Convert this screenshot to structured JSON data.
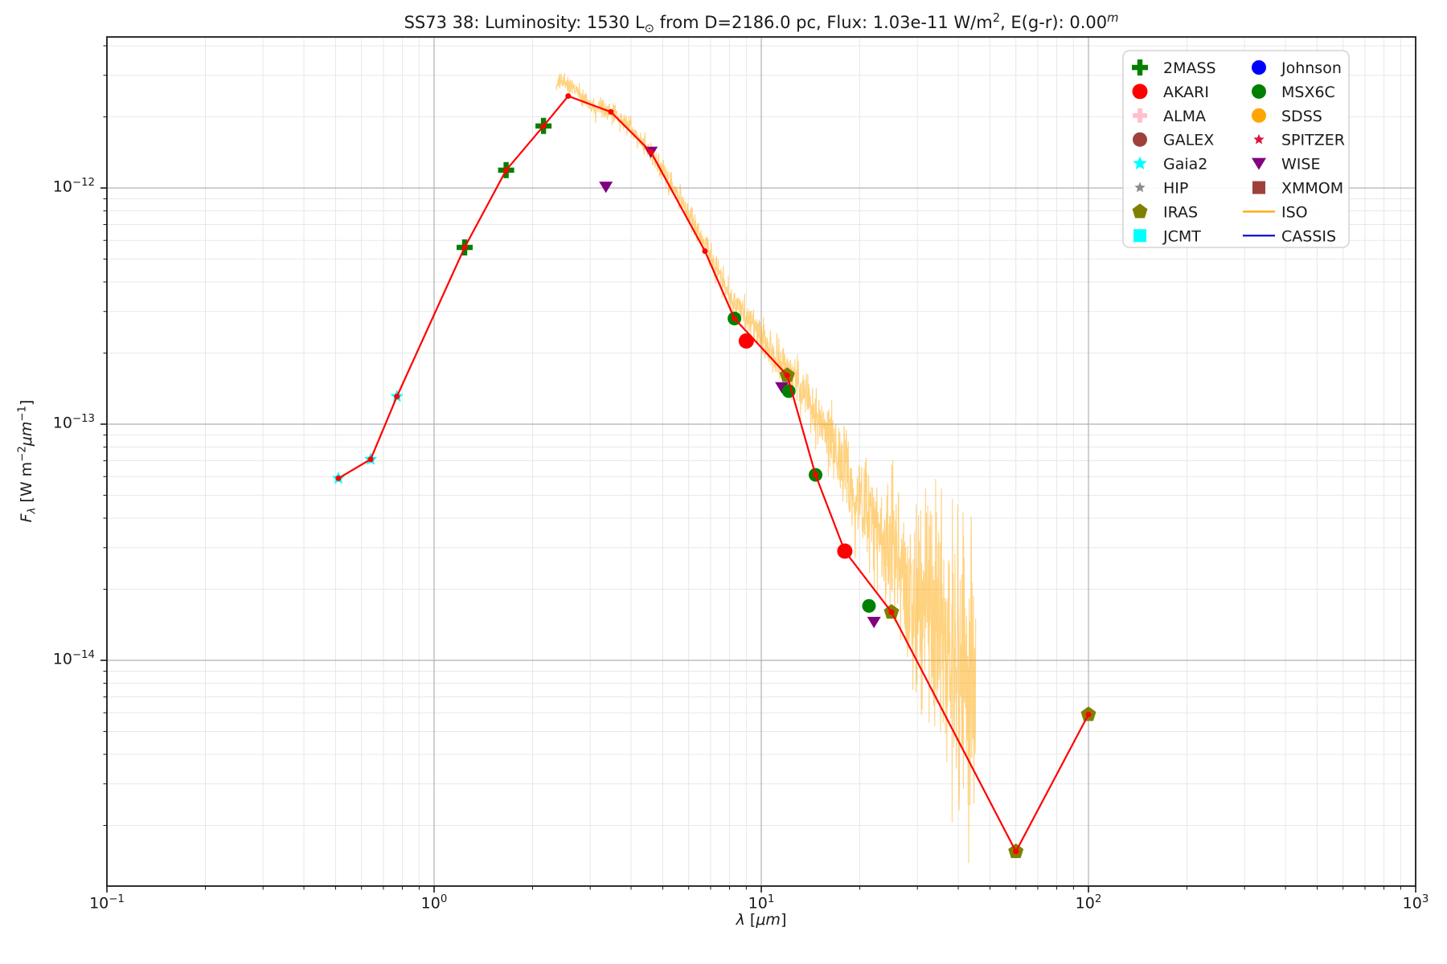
{
  "title": {
    "plain": "SS73 38:  Luminosity: 1530 L⊙ from D=2186.0 pc, Flux: 1.03e-11 W/m2, E(g-r): 0.00m",
    "segments": [
      {
        "t": "SS73 38:  Luminosity: 1530 L",
        "s": ""
      },
      {
        "t": "⊙",
        "s": "sub"
      },
      {
        "t": " from D=2186.0 pc, Flux: 1.03e-11 W/m",
        "s": ""
      },
      {
        "t": "2",
        "s": "sup"
      },
      {
        "t": ", E(g-r): 0.00",
        "s": ""
      },
      {
        "t": "m",
        "s": "sup-i"
      }
    ]
  },
  "axes": {
    "xlabel_segments": [
      {
        "t": "λ",
        "s": "i"
      },
      {
        "t": " [",
        "s": ""
      },
      {
        "t": "μm",
        "s": "i"
      },
      {
        "t": "]",
        "s": ""
      }
    ],
    "ylabel_segments": [
      {
        "t": "F",
        "s": "i"
      },
      {
        "t": "λ",
        "s": "sub-i"
      },
      {
        "t": " [W m",
        "s": ""
      },
      {
        "t": "−2",
        "s": "sup"
      },
      {
        "t": "μm",
        "s": "i"
      },
      {
        "t": "−1",
        "s": "sup"
      },
      {
        "t": "]",
        "s": ""
      }
    ],
    "x_ticks": [
      {
        "base": "10",
        "exp": "−1",
        "value": 0.1
      },
      {
        "base": "10",
        "exp": "0",
        "value": 1
      },
      {
        "base": "10",
        "exp": "1",
        "value": 10
      },
      {
        "base": "10",
        "exp": "2",
        "value": 100
      },
      {
        "base": "10",
        "exp": "3",
        "value": 1000
      }
    ],
    "y_ticks": [
      {
        "base": "10",
        "exp": "−12",
        "value": 1e-12
      },
      {
        "base": "10",
        "exp": "−13",
        "value": 1e-13
      },
      {
        "base": "10",
        "exp": "−14",
        "value": 1e-14
      }
    ],
    "grid_major_color": "#b0b0b0",
    "grid_minor_color": "#e8e8e8",
    "spine_color": "#1a1a1a"
  },
  "legend": {
    "columns": [
      [
        {
          "label": "2MASS",
          "marker": "plus",
          "color": "#008000",
          "size": 10
        },
        {
          "label": "AKARI",
          "marker": "circle",
          "color": "#ff0000",
          "size": 9.5
        },
        {
          "label": "ALMA",
          "marker": "plus",
          "color": "#ffc0cb",
          "size": 9
        },
        {
          "label": "GALEX",
          "marker": "circle",
          "color": "#a0403a",
          "size": 9
        },
        {
          "label": "Gaia2",
          "marker": "star",
          "color": "#00ffff",
          "size": 9
        },
        {
          "label": "HIP",
          "marker": "star",
          "color": "#8c8c8c",
          "size": 7
        },
        {
          "label": "IRAS",
          "marker": "pentagon",
          "color": "#808000",
          "size": 10
        },
        {
          "label": "JCMT",
          "marker": "square",
          "color": "#00ffff",
          "size": 8
        }
      ],
      [
        {
          "label": "Johnson",
          "marker": "circle",
          "color": "#0000ff",
          "size": 9
        },
        {
          "label": "MSX6C",
          "marker": "circle",
          "color": "#008000",
          "size": 9
        },
        {
          "label": "SDSS",
          "marker": "circle",
          "color": "#ffa500",
          "size": 9
        },
        {
          "label": "SPITZER",
          "marker": "star",
          "color": "#dc143c",
          "size": 7
        },
        {
          "label": "WISE",
          "marker": "triangle-down",
          "color": "#800080",
          "size": 9
        },
        {
          "label": "XMMOM",
          "marker": "square",
          "color": "#a0403a",
          "size": 8
        },
        {
          "label": "ISO",
          "marker": "hline",
          "color": "#ffa500",
          "size": 20
        },
        {
          "label": "CASSIS",
          "marker": "hline",
          "color": "#0000cd",
          "size": 20
        }
      ]
    ]
  },
  "chart_data": {
    "type": "scatter",
    "x_scale": "log",
    "y_scale": "log",
    "xlim": [
      0.1,
      1000
    ],
    "ylim": [
      1.1e-15,
      4.36e-12
    ],
    "xlabel": "lambda [um]",
    "ylabel": "F_lambda [W m^-2 um^-1]",
    "grid": "both",
    "legend_position": "upper right",
    "title": "SS73 38:  Luminosity: 1530 Lsun from D=2186.0 pc, Flux: 1.03e-11 W/m2, E(g-r): 0.00m",
    "series": [
      {
        "name": "Gaia2",
        "marker": "star",
        "color": "#00ffff",
        "msize": 8.5,
        "points": [
          [
            0.51,
            5.9e-14
          ],
          [
            0.64,
            7.1e-14
          ],
          [
            0.77,
            1.31e-13
          ]
        ]
      },
      {
        "name": "2MASS",
        "marker": "plus",
        "color": "#008000",
        "msize": 10,
        "points": [
          [
            1.24,
            5.6e-13
          ],
          [
            1.66,
            1.19e-12
          ],
          [
            2.16,
            1.83e-12
          ]
        ]
      },
      {
        "name": "WISE",
        "marker": "triangle-down",
        "color": "#800080",
        "msize": 8.5,
        "points": [
          [
            3.35,
            1.01e-12
          ],
          [
            4.6,
            1.42e-12
          ],
          [
            11.56,
            1.43e-13
          ],
          [
            22.1,
            1.45e-14
          ]
        ]
      },
      {
        "name": "MSX6C",
        "marker": "circle",
        "color": "#008000",
        "msize": 8.5,
        "points": [
          [
            8.28,
            2.8e-13
          ],
          [
            12.13,
            1.38e-13
          ],
          [
            14.65,
            6.1e-14
          ],
          [
            21.34,
            1.7e-14
          ]
        ]
      },
      {
        "name": "AKARI",
        "marker": "circle",
        "color": "#ff0000",
        "msize": 9.5,
        "points": [
          [
            9.0,
            2.25e-13
          ],
          [
            18.0,
            2.9e-14
          ]
        ]
      },
      {
        "name": "IRAS",
        "marker": "pentagon",
        "color": "#808000",
        "msize": 10,
        "points": [
          [
            12.0,
            1.61e-13
          ],
          [
            25.0,
            1.6e-14
          ],
          [
            60.0,
            1.55e-15
          ],
          [
            100.0,
            5.9e-15
          ]
        ]
      }
    ],
    "model_fit_line": {
      "name": "model-fit",
      "color": "#ff0000",
      "width": 2.2,
      "dot_radius": 3.5,
      "points": [
        [
          0.51,
          5.9e-14
        ],
        [
          0.64,
          7.1e-14
        ],
        [
          0.77,
          1.31e-13
        ],
        [
          1.24,
          5.6e-13
        ],
        [
          1.66,
          1.19e-12
        ],
        [
          2.16,
          1.83e-12
        ],
        [
          2.57,
          2.45e-12
        ],
        [
          3.47,
          2.1e-12
        ],
        [
          4.6,
          1.42e-12
        ],
        [
          6.73,
          5.4e-13
        ],
        [
          8.28,
          2.8e-13
        ],
        [
          12.0,
          1.61e-13
        ],
        [
          14.65,
          6.1e-14
        ],
        [
          18.0,
          2.9e-14
        ],
        [
          25.0,
          1.6e-14
        ],
        [
          60.0,
          1.55e-15
        ],
        [
          100.0,
          5.9e-15
        ]
      ]
    },
    "iso_spectrum": {
      "name": "ISO",
      "color": "#ffa500",
      "opacity": 0.5,
      "width": 1.1,
      "lambda_range": [
        2.36,
        45.3
      ],
      "n_samples": 1500,
      "mean_anchors": [
        [
          2.36,
          2.7e-12
        ],
        [
          2.5,
          2.85e-12
        ],
        [
          2.75,
          2.55e-12
        ],
        [
          3.1,
          2.15e-12
        ],
        [
          3.5,
          2.1e-12
        ],
        [
          4.0,
          1.8e-12
        ],
        [
          4.6,
          1.4e-12
        ],
        [
          5.2,
          1.08e-12
        ],
        [
          6.0,
          7.8e-13
        ],
        [
          7.0,
          5.2e-13
        ],
        [
          8.0,
          3.5e-13
        ],
        [
          9.3,
          2.7e-13
        ],
        [
          10.5,
          2.1e-13
        ],
        [
          12.0,
          1.7e-13
        ],
        [
          13.5,
          1.35e-13
        ],
        [
          15.0,
          1.05e-13
        ],
        [
          16.5,
          8.2e-14
        ],
        [
          18.0,
          6.2e-14
        ],
        [
          20.0,
          4.6e-14
        ],
        [
          22.0,
          4e-14
        ],
        [
          24.0,
          3.3e-14
        ],
        [
          26.0,
          2.7e-14
        ],
        [
          28.0,
          2.1e-14
        ],
        [
          30.0,
          1.9e-14
        ],
        [
          32.0,
          2e-14
        ],
        [
          34.0,
          1.8e-14
        ],
        [
          36.0,
          1.4e-14
        ],
        [
          38.0,
          1.2e-14
        ],
        [
          40.0,
          1.05e-14
        ],
        [
          42.0,
          9.5e-15
        ],
        [
          43.5,
          8.5e-15
        ],
        [
          45.3,
          8e-15
        ]
      ],
      "noise_dex_anchors": [
        [
          2.36,
          0.018
        ],
        [
          3.0,
          0.02
        ],
        [
          4.0,
          0.022
        ],
        [
          6.0,
          0.025
        ],
        [
          8.0,
          0.035
        ],
        [
          10.0,
          0.04
        ],
        [
          12.0,
          0.05
        ],
        [
          15.0,
          0.06
        ],
        [
          18.0,
          0.09
        ],
        [
          21.0,
          0.11
        ],
        [
          24.0,
          0.13
        ],
        [
          27.0,
          0.16
        ],
        [
          30.0,
          0.22
        ],
        [
          33.0,
          0.26
        ],
        [
          36.0,
          0.3
        ],
        [
          40.0,
          0.33
        ],
        [
          45.3,
          0.36
        ]
      ]
    }
  }
}
